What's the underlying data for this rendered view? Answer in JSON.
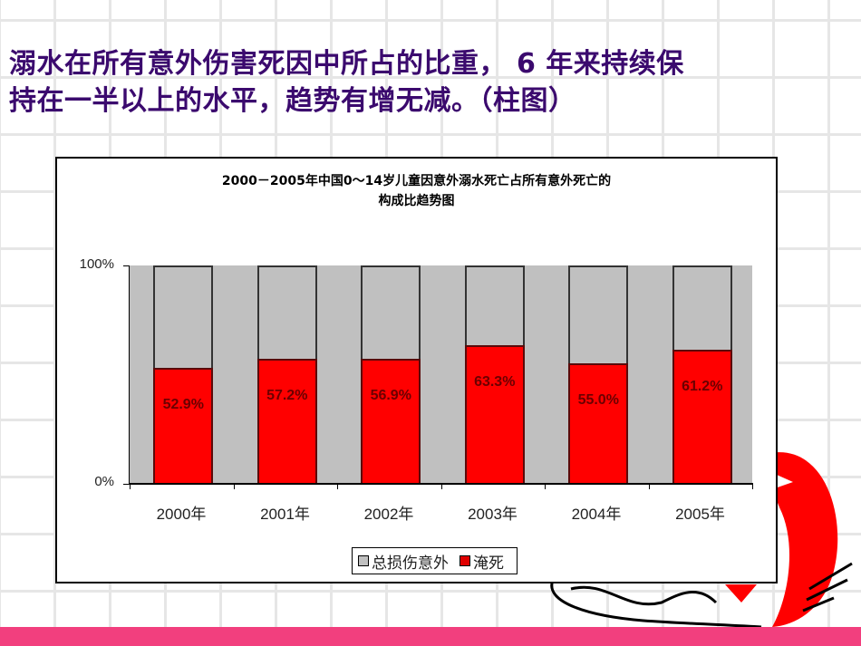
{
  "headline": {
    "line1": "溺水在所有意外伤害死因中所占的比重， 6 年来持续保",
    "line2": "持在一半以上的水平，趋势有增无减。（柱图）"
  },
  "chart_data": {
    "type": "bar",
    "stacked": "percent",
    "title": "2000－2005年中国0～14岁儿童因意外溺水死亡占所有意外死亡的构成比趋势图",
    "title_lines": [
      "2000－2005年中国0～14岁儿童因意外溺水死亡占所有意外死亡的",
      "构成比趋势图"
    ],
    "categories": [
      "2000年",
      "2001年",
      "2002年",
      "2003年",
      "2004年",
      "2005年"
    ],
    "series": [
      {
        "name": "淹死",
        "color": "#ff0000",
        "values": [
          52.9,
          57.2,
          56.9,
          63.3,
          55.0,
          61.2
        ]
      },
      {
        "name": "总损伤意外",
        "color": "#c0c0c0",
        "values": [
          47.1,
          42.8,
          43.1,
          36.7,
          45.0,
          38.8
        ]
      }
    ],
    "data_labels": [
      "52.9%",
      "57.2%",
      "56.9%",
      "63.3%",
      "55.0%",
      "61.2%"
    ],
    "yticks": [
      "0%",
      "100%"
    ],
    "ylim": [
      0,
      100
    ],
    "xlabel": "",
    "ylabel": "",
    "grid": false,
    "legend": {
      "position": "bottom",
      "entries": [
        "总损伤意外",
        "淹死"
      ]
    }
  },
  "colors": {
    "headline": "#3b0a6e",
    "accent_bar": "#f23f7e"
  }
}
